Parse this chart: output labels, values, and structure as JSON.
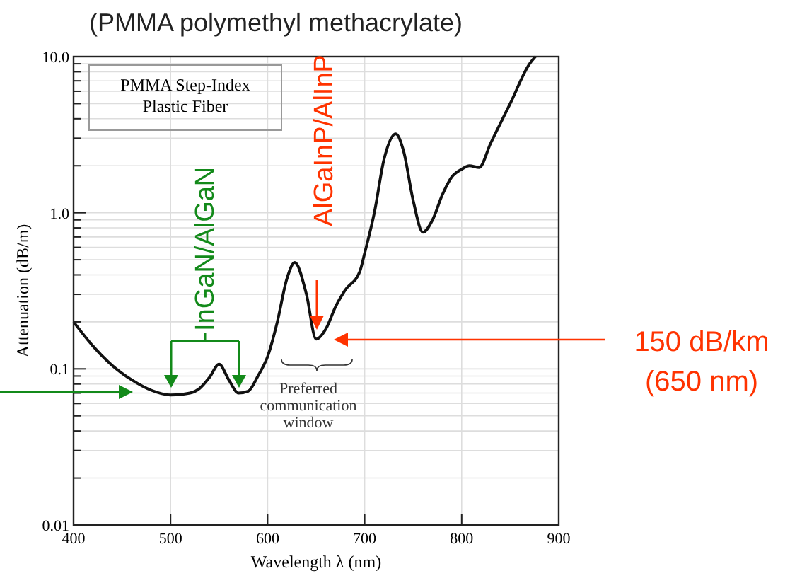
{
  "chart_data": {
    "type": "line",
    "title": "(PMMA polymethyl methacrylate)",
    "xlabel": "Wavelength  λ  (nm)",
    "ylabel": "Attenuation  (dB/m)",
    "x": [
      400,
      420,
      440,
      460,
      480,
      500,
      520,
      530,
      540,
      550,
      560,
      570,
      580,
      590,
      600,
      610,
      620,
      628,
      640,
      650,
      660,
      670,
      680,
      695,
      700,
      710,
      720,
      732,
      740,
      750,
      760,
      770,
      780,
      790,
      800,
      808,
      818,
      830,
      850,
      870,
      876
    ],
    "series": [
      {
        "color": "#111111",
        "values": [
          0.2,
          0.14,
          0.105,
          0.085,
          0.073,
          0.068,
          0.07,
          0.075,
          0.088,
          0.107,
          0.085,
          0.07,
          0.072,
          0.09,
          0.12,
          0.2,
          0.38,
          0.48,
          0.3,
          0.155,
          0.18,
          0.25,
          0.32,
          0.42,
          0.55,
          1.0,
          2.2,
          3.2,
          2.5,
          1.2,
          0.75,
          0.9,
          1.3,
          1.7,
          1.9,
          2.0,
          1.95,
          2.8,
          5.0,
          9.0,
          10.0
        ]
      }
    ],
    "log": "y",
    "xlim": [
      400,
      900
    ],
    "ylim": [
      0.01,
      10
    ],
    "xticks": [
      400,
      500,
      600,
      700,
      800,
      900
    ],
    "yticks": [
      {
        "value": 0.01,
        "label": "0.01"
      },
      {
        "value": 0.02,
        "label": null
      },
      {
        "value": 0.03,
        "label": null
      },
      {
        "value": 0.04,
        "label": null
      },
      {
        "value": 0.05,
        "label": null
      },
      {
        "value": 0.06,
        "label": null
      },
      {
        "value": 0.07,
        "label": null
      },
      {
        "value": 0.08,
        "label": null
      },
      {
        "value": 0.09,
        "label": null
      },
      {
        "value": 0.1,
        "label": "0.1"
      },
      {
        "value": 0.2,
        "label": null
      },
      {
        "value": 0.3,
        "label": null
      },
      {
        "value": 0.4,
        "label": null
      },
      {
        "value": 0.5,
        "label": null
      },
      {
        "value": 0.6,
        "label": null
      },
      {
        "value": 0.7,
        "label": null
      },
      {
        "value": 0.8,
        "label": null
      },
      {
        "value": 0.9,
        "label": null
      },
      {
        "value": 1,
        "label": "1.0"
      },
      {
        "value": 2,
        "label": null
      },
      {
        "value": 3,
        "label": null
      },
      {
        "value": 4,
        "label": null
      },
      {
        "value": 5,
        "label": null
      },
      {
        "value": 6,
        "label": null
      },
      {
        "value": 7,
        "label": null
      },
      {
        "value": 8,
        "label": null
      },
      {
        "value": 9,
        "label": null
      },
      {
        "value": 10,
        "label": "10.0"
      }
    ],
    "grid": true,
    "annotations": [
      "PMMA Step-Index\nPlastic Fiber",
      "InGaN/AlGaN",
      "AlGaInP/AlInP",
      "Preferred\ncommunication\nwindow",
      "150 dB/km\n(650 nm)"
    ]
  }
}
